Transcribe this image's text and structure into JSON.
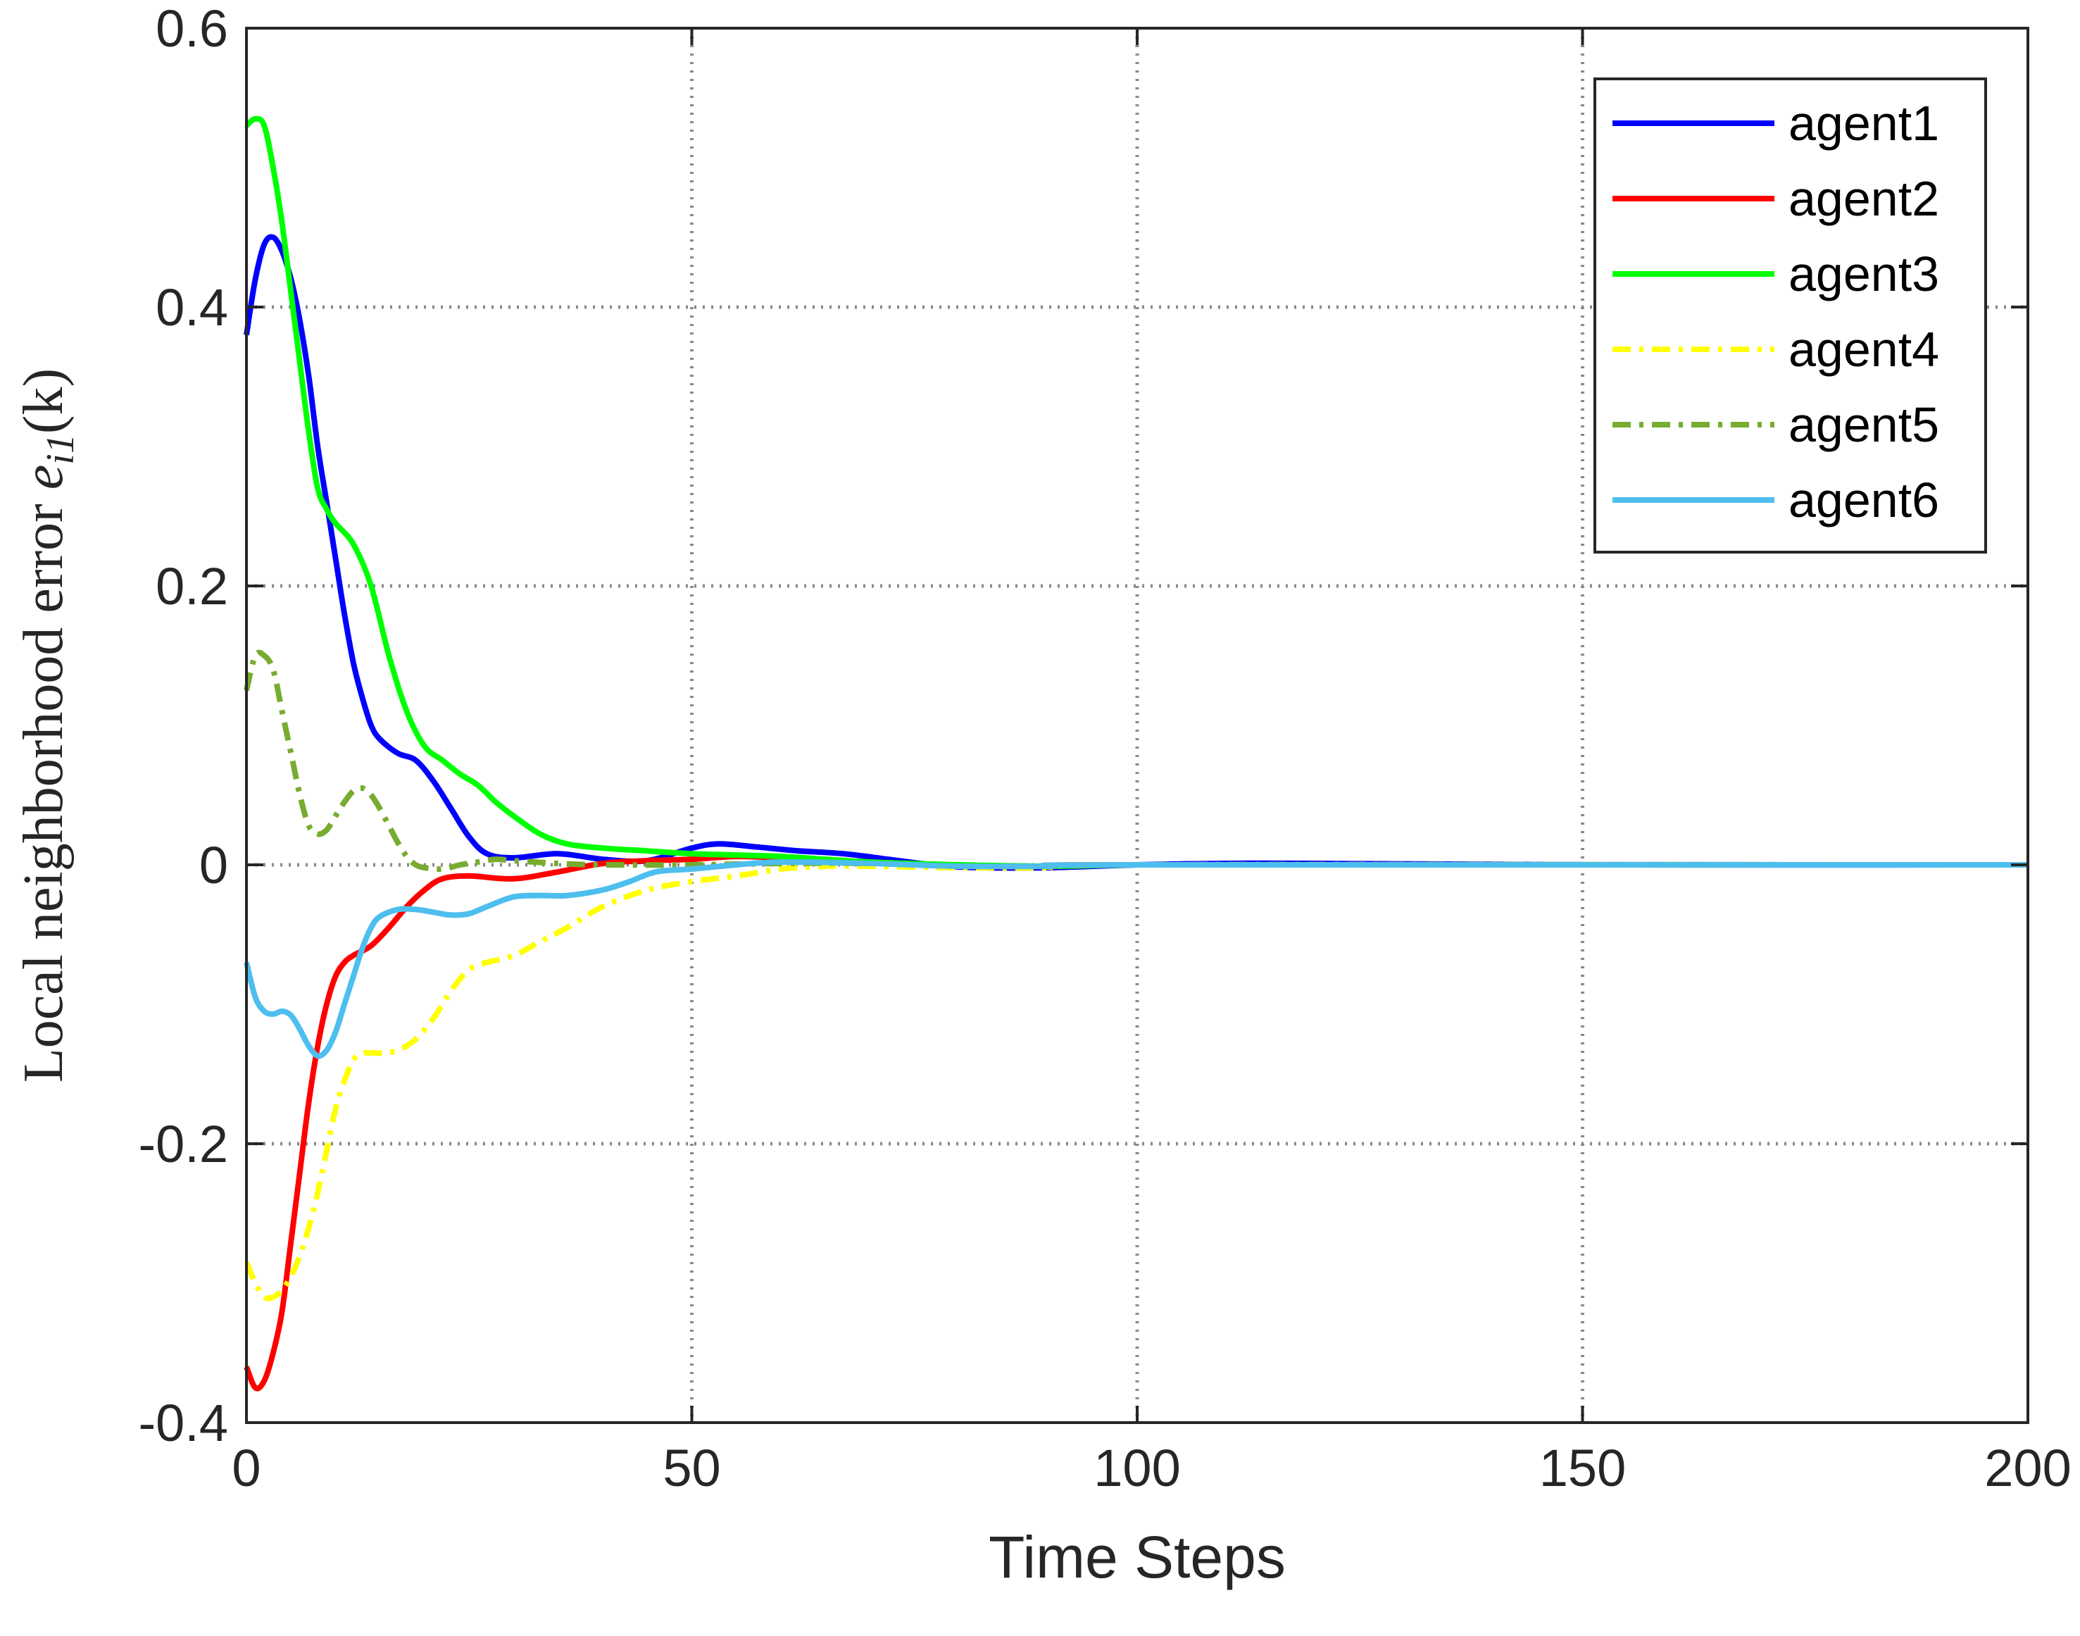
{
  "chart_data": {
    "type": "line",
    "title": "",
    "xlabel": "Time Steps",
    "ylabel": "Local neighborhood error e_{i1}(k)",
    "ylabel_parts": {
      "prefix": "Local neighborhood error ",
      "var": "e",
      "sub": "i1",
      "suffix": "(k)"
    },
    "xlim": [
      0,
      200
    ],
    "ylim": [
      -0.4,
      0.6
    ],
    "xticks": [
      0,
      50,
      100,
      150,
      200
    ],
    "yticks": [
      -0.4,
      -0.2,
      0,
      0.2,
      0.4,
      0.6
    ],
    "xtick_labels": [
      "0",
      "50",
      "100",
      "150",
      "200"
    ],
    "ytick_labels": [
      "-0.4",
      "-0.2",
      "0",
      "0.2",
      "0.4",
      "0.6"
    ],
    "grid": true,
    "legend_position": "top-right",
    "series": [
      {
        "name": "agent1",
        "color": "#0000ff",
        "style": "solid",
        "points": [
          [
            0,
            0.38
          ],
          [
            1,
            0.42
          ],
          [
            2,
            0.445
          ],
          [
            3,
            0.45
          ],
          [
            4,
            0.44
          ],
          [
            5,
            0.42
          ],
          [
            6,
            0.39
          ],
          [
            7,
            0.35
          ],
          [
            8,
            0.3
          ],
          [
            9,
            0.26
          ],
          [
            10,
            0.22
          ],
          [
            11,
            0.18
          ],
          [
            12,
            0.145
          ],
          [
            13,
            0.12
          ],
          [
            14,
            0.1
          ],
          [
            15,
            0.09
          ],
          [
            17,
            0.08
          ],
          [
            19,
            0.075
          ],
          [
            21,
            0.06
          ],
          [
            23,
            0.04
          ],
          [
            25,
            0.02
          ],
          [
            27,
            0.008
          ],
          [
            30,
            0.005
          ],
          [
            35,
            0.008
          ],
          [
            40,
            0.004
          ],
          [
            45,
            0.003
          ],
          [
            50,
            0.012
          ],
          [
            53,
            0.015
          ],
          [
            57,
            0.013
          ],
          [
            62,
            0.01
          ],
          [
            67,
            0.008
          ],
          [
            72,
            0.004
          ],
          [
            77,
            0.0
          ],
          [
            82,
            -0.002
          ],
          [
            90,
            -0.002
          ],
          [
            100,
            0.0
          ],
          [
            110,
            0.001
          ],
          [
            120,
            0.001
          ],
          [
            150,
            0.0
          ],
          [
            200,
            0.0
          ]
        ]
      },
      {
        "name": "agent2",
        "color": "#ff0000",
        "style": "solid",
        "points": [
          [
            0,
            -0.36
          ],
          [
            1,
            -0.375
          ],
          [
            2,
            -0.37
          ],
          [
            3,
            -0.35
          ],
          [
            4,
            -0.32
          ],
          [
            5,
            -0.27
          ],
          [
            6,
            -0.22
          ],
          [
            7,
            -0.17
          ],
          [
            8,
            -0.13
          ],
          [
            9,
            -0.1
          ],
          [
            10,
            -0.08
          ],
          [
            11,
            -0.07
          ],
          [
            12,
            -0.065
          ],
          [
            14,
            -0.058
          ],
          [
            16,
            -0.045
          ],
          [
            18,
            -0.03
          ],
          [
            20,
            -0.018
          ],
          [
            22,
            -0.01
          ],
          [
            25,
            -0.008
          ],
          [
            30,
            -0.01
          ],
          [
            35,
            -0.005
          ],
          [
            40,
            0.001
          ],
          [
            45,
            0.003
          ],
          [
            50,
            0.004
          ],
          [
            55,
            0.006
          ],
          [
            60,
            0.005
          ],
          [
            70,
            0.002
          ],
          [
            80,
            -0.001
          ],
          [
            90,
            -0.001
          ],
          [
            100,
            0.0
          ],
          [
            200,
            0.0
          ]
        ]
      },
      {
        "name": "agent3",
        "color": "#00ff00",
        "style": "solid",
        "points": [
          [
            0,
            0.53
          ],
          [
            1,
            0.535
          ],
          [
            2,
            0.53
          ],
          [
            3,
            0.5
          ],
          [
            4,
            0.46
          ],
          [
            5,
            0.41
          ],
          [
            6,
            0.36
          ],
          [
            7,
            0.31
          ],
          [
            8,
            0.27
          ],
          [
            9,
            0.255
          ],
          [
            10,
            0.245
          ],
          [
            12,
            0.23
          ],
          [
            14,
            0.2
          ],
          [
            16,
            0.15
          ],
          [
            18,
            0.11
          ],
          [
            20,
            0.085
          ],
          [
            22,
            0.075
          ],
          [
            24,
            0.065
          ],
          [
            26,
            0.057
          ],
          [
            28,
            0.045
          ],
          [
            30,
            0.035
          ],
          [
            33,
            0.022
          ],
          [
            36,
            0.015
          ],
          [
            40,
            0.012
          ],
          [
            45,
            0.01
          ],
          [
            50,
            0.008
          ],
          [
            55,
            0.007
          ],
          [
            60,
            0.006
          ],
          [
            65,
            0.004
          ],
          [
            70,
            0.002
          ],
          [
            80,
            0.0
          ],
          [
            90,
            -0.001
          ],
          [
            100,
            0.0
          ],
          [
            120,
            0.0
          ],
          [
            150,
            0.0
          ],
          [
            200,
            0.0
          ]
        ]
      },
      {
        "name": "agent4",
        "color": "#ffff00",
        "style": "dashdot",
        "points": [
          [
            0,
            -0.285
          ],
          [
            1,
            -0.3
          ],
          [
            2,
            -0.31
          ],
          [
            3,
            -0.31
          ],
          [
            4,
            -0.305
          ],
          [
            5,
            -0.295
          ],
          [
            6,
            -0.28
          ],
          [
            7,
            -0.26
          ],
          [
            8,
            -0.235
          ],
          [
            9,
            -0.205
          ],
          [
            10,
            -0.175
          ],
          [
            11,
            -0.155
          ],
          [
            12,
            -0.14
          ],
          [
            13,
            -0.135
          ],
          [
            15,
            -0.135
          ],
          [
            17,
            -0.133
          ],
          [
            19,
            -0.125
          ],
          [
            21,
            -0.11
          ],
          [
            23,
            -0.09
          ],
          [
            25,
            -0.075
          ],
          [
            27,
            -0.07
          ],
          [
            30,
            -0.065
          ],
          [
            33,
            -0.055
          ],
          [
            36,
            -0.045
          ],
          [
            40,
            -0.03
          ],
          [
            45,
            -0.018
          ],
          [
            50,
            -0.012
          ],
          [
            55,
            -0.008
          ],
          [
            60,
            -0.003
          ],
          [
            65,
            -0.001
          ],
          [
            70,
            -0.001
          ],
          [
            80,
            -0.002
          ],
          [
            90,
            -0.002
          ],
          [
            100,
            0.0
          ],
          [
            200,
            0.0
          ]
        ]
      },
      {
        "name": "agent5",
        "color": "#77ac30",
        "style": "dashdot",
        "points": [
          [
            0,
            0.125
          ],
          [
            1,
            0.15
          ],
          [
            2,
            0.15
          ],
          [
            3,
            0.14
          ],
          [
            4,
            0.11
          ],
          [
            5,
            0.08
          ],
          [
            6,
            0.05
          ],
          [
            7,
            0.028
          ],
          [
            8,
            0.022
          ],
          [
            9,
            0.025
          ],
          [
            10,
            0.035
          ],
          [
            11,
            0.045
          ],
          [
            12,
            0.053
          ],
          [
            13,
            0.055
          ],
          [
            14,
            0.05
          ],
          [
            15,
            0.04
          ],
          [
            16,
            0.028
          ],
          [
            17,
            0.016
          ],
          [
            18,
            0.006
          ],
          [
            19,
            0.0
          ],
          [
            20,
            -0.002
          ],
          [
            22,
            -0.003
          ],
          [
            24,
            0.0
          ],
          [
            26,
            0.002
          ],
          [
            28,
            0.004
          ],
          [
            30,
            0.003
          ],
          [
            35,
            0.001
          ],
          [
            40,
            0.0
          ],
          [
            50,
            0.0
          ],
          [
            60,
            0.001
          ],
          [
            70,
            0.001
          ],
          [
            80,
            -0.001
          ],
          [
            90,
            -0.001
          ],
          [
            100,
            0.0
          ],
          [
            200,
            0.0
          ]
        ]
      },
      {
        "name": "agent6",
        "color": "#4dbeee",
        "style": "solid",
        "points": [
          [
            0,
            -0.07
          ],
          [
            1,
            -0.095
          ],
          [
            2,
            -0.105
          ],
          [
            3,
            -0.107
          ],
          [
            4,
            -0.105
          ],
          [
            5,
            -0.108
          ],
          [
            6,
            -0.118
          ],
          [
            7,
            -0.13
          ],
          [
            8,
            -0.137
          ],
          [
            9,
            -0.133
          ],
          [
            10,
            -0.12
          ],
          [
            11,
            -0.1
          ],
          [
            12,
            -0.08
          ],
          [
            13,
            -0.06
          ],
          [
            14,
            -0.045
          ],
          [
            15,
            -0.037
          ],
          [
            17,
            -0.032
          ],
          [
            19,
            -0.032
          ],
          [
            21,
            -0.034
          ],
          [
            23,
            -0.036
          ],
          [
            25,
            -0.035
          ],
          [
            27,
            -0.03
          ],
          [
            30,
            -0.023
          ],
          [
            33,
            -0.022
          ],
          [
            36,
            -0.022
          ],
          [
            40,
            -0.018
          ],
          [
            43,
            -0.012
          ],
          [
            46,
            -0.005
          ],
          [
            50,
            -0.003
          ],
          [
            55,
            0.0
          ],
          [
            60,
            0.002
          ],
          [
            70,
            0.001
          ],
          [
            80,
            -0.001
          ],
          [
            90,
            -0.001
          ],
          [
            100,
            0.0
          ],
          [
            200,
            0.0
          ]
        ]
      }
    ]
  }
}
